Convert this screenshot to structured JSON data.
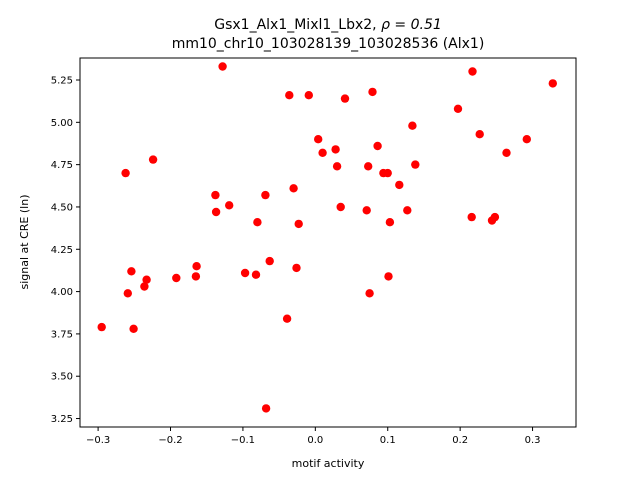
{
  "chart_data": {
    "type": "scatter",
    "title_line1_prefix": "Gsx1_Alx1_Mixl1_Lbx2, ",
    "title_line1_rho": "ρ = 0.51",
    "title_line2": "mm10_chr10_103028139_103028536 (Alx1)",
    "xlabel": "motif activity",
    "ylabel": "signal at CRE (ln)",
    "xlim": [
      -0.325,
      0.36
    ],
    "ylim": [
      3.2,
      5.38
    ],
    "xticks": [
      -0.3,
      -0.2,
      -0.1,
      0.0,
      0.1,
      0.2,
      0.3
    ],
    "xtick_labels": [
      "−0.3",
      "−0.2",
      "−0.1",
      "0.0",
      "0.1",
      "0.2",
      "0.3"
    ],
    "yticks": [
      3.25,
      3.5,
      3.75,
      4.0,
      4.25,
      4.5,
      4.75,
      5.0,
      5.25
    ],
    "ytick_labels": [
      "3.25",
      "3.50",
      "3.75",
      "4.00",
      "4.25",
      "4.50",
      "4.75",
      "5.00",
      "5.25"
    ],
    "marker_color": "#ff0000",
    "points": [
      [
        -0.295,
        3.79
      ],
      [
        -0.262,
        4.7
      ],
      [
        -0.259,
        3.99
      ],
      [
        -0.254,
        4.12
      ],
      [
        -0.251,
        3.78
      ],
      [
        -0.236,
        4.03
      ],
      [
        -0.233,
        4.07
      ],
      [
        -0.224,
        4.78
      ],
      [
        -0.192,
        4.08
      ],
      [
        -0.165,
        4.09
      ],
      [
        -0.164,
        4.15
      ],
      [
        -0.138,
        4.57
      ],
      [
        -0.137,
        4.47
      ],
      [
        -0.128,
        5.33
      ],
      [
        -0.119,
        4.51
      ],
      [
        -0.097,
        4.11
      ],
      [
        -0.082,
        4.1
      ],
      [
        -0.08,
        4.41
      ],
      [
        -0.069,
        4.57
      ],
      [
        -0.068,
        3.31
      ],
      [
        -0.063,
        4.18
      ],
      [
        -0.039,
        3.84
      ],
      [
        -0.036,
        5.16
      ],
      [
        -0.03,
        4.61
      ],
      [
        -0.026,
        4.14
      ],
      [
        -0.023,
        4.4
      ],
      [
        -0.009,
        5.16
      ],
      [
        0.004,
        4.9
      ],
      [
        0.01,
        4.82
      ],
      [
        0.028,
        4.84
      ],
      [
        0.03,
        4.74
      ],
      [
        0.035,
        4.5
      ],
      [
        0.041,
        5.14
      ],
      [
        0.071,
        4.48
      ],
      [
        0.073,
        4.74
      ],
      [
        0.075,
        3.99
      ],
      [
        0.079,
        5.18
      ],
      [
        0.086,
        4.86
      ],
      [
        0.094,
        4.7
      ],
      [
        0.1,
        4.7
      ],
      [
        0.101,
        4.09
      ],
      [
        0.103,
        4.41
      ],
      [
        0.116,
        4.63
      ],
      [
        0.127,
        4.48
      ],
      [
        0.134,
        4.98
      ],
      [
        0.138,
        4.75
      ],
      [
        0.197,
        5.08
      ],
      [
        0.216,
        4.44
      ],
      [
        0.217,
        5.3
      ],
      [
        0.227,
        4.93
      ],
      [
        0.244,
        4.42
      ],
      [
        0.248,
        4.44
      ],
      [
        0.264,
        4.82
      ],
      [
        0.292,
        4.9
      ],
      [
        0.328,
        5.23
      ]
    ]
  }
}
